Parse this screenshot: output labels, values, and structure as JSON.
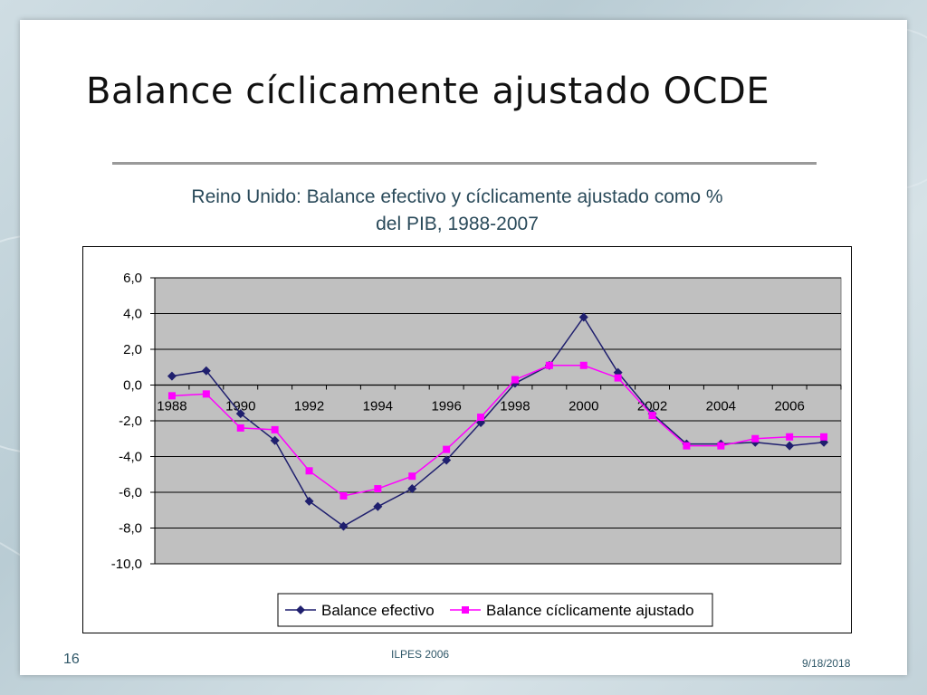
{
  "slide": {
    "title": "Balance cíclicamente ajustado OCDE",
    "footer_page": "16",
    "footer_center": "ILPES 2006",
    "footer_date": "9/18/2018"
  },
  "colors": {
    "plot_bg": "#c0c0c0",
    "series_effective": "#1f1f6e",
    "series_adjusted": "#ff00ff",
    "slide_text": "#2f5768"
  },
  "chart_data": {
    "type": "line",
    "title": "Reino Unido: Balance efectivo y cíclicamente ajustado como % del PIB, 1988-2007",
    "x": [
      1988,
      1989,
      1990,
      1991,
      1992,
      1993,
      1994,
      1995,
      1996,
      1997,
      1998,
      1999,
      2000,
      2001,
      2002,
      2003,
      2004,
      2005,
      2006,
      2007
    ],
    "x_tick_labels": [
      "1988",
      "1990",
      "1992",
      "1994",
      "1996",
      "1998",
      "2000",
      "2002",
      "2004",
      "2006"
    ],
    "y_tick_labels": [
      "6,0",
      "4,0",
      "2,0",
      "0,0",
      "-2,0",
      "-4,0",
      "-6,0",
      "-8,0",
      "-10,0"
    ],
    "ylim": [
      -10,
      6
    ],
    "y_tick_step": 2,
    "grid": "horizontal",
    "legend_position": "bottom",
    "series": [
      {
        "name": "Balance efectivo",
        "marker": "diamond",
        "values": [
          0.5,
          0.8,
          -1.6,
          -3.1,
          -6.5,
          -7.9,
          -6.8,
          -5.8,
          -4.2,
          -2.1,
          0.1,
          1.1,
          3.8,
          0.7,
          -1.6,
          -3.3,
          -3.3,
          -3.2,
          -3.4,
          -3.2
        ]
      },
      {
        "name": "Balance cíclicamente ajustado",
        "marker": "square",
        "values": [
          -0.6,
          -0.5,
          -2.4,
          -2.5,
          -4.8,
          -6.2,
          -5.8,
          -5.1,
          -3.6,
          -1.8,
          0.3,
          1.1,
          1.1,
          0.4,
          -1.7,
          -3.4,
          -3.4,
          -3.0,
          -2.9,
          -2.9
        ]
      }
    ]
  }
}
